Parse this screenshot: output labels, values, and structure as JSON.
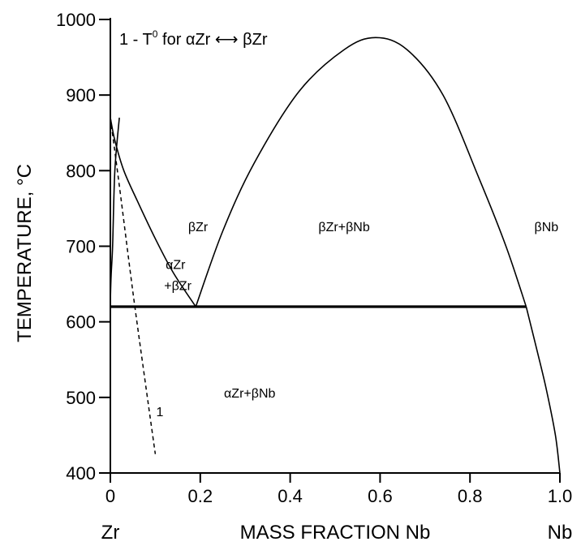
{
  "chart_data": {
    "type": "line",
    "title": "",
    "xlabel": "MASS FRACTION Nb",
    "ylabel": "TEMPERATURE, °C",
    "xlim": [
      0,
      1
    ],
    "ylim": [
      400,
      1000
    ],
    "x_ticks": [
      "0",
      "0.2",
      "0.4",
      "0.6",
      "0.8",
      "1.0"
    ],
    "y_ticks": [
      "400",
      "500",
      "600",
      "700",
      "800",
      "900",
      "1000"
    ],
    "x_end_labels": {
      "left": "Zr",
      "right": "Nb"
    },
    "legend": {
      "prefix": "1 - T",
      "superscript": "0",
      "text": " for αZr",
      "arrow": "⟷",
      "suffix": "βZr",
      "placement": "top-left"
    },
    "series": [
      {
        "name": "",
        "style": "solid",
        "x": [
          0.0,
          0.0,
          0.005,
          0.01,
          0.02
        ],
        "y": [
          400,
          620,
          700,
          800,
          870
        ]
      },
      {
        "name": "",
        "style": "solid",
        "x": [
          0.0,
          0.01,
          0.03,
          0.06,
          0.1,
          0.14,
          0.19
        ],
        "y": [
          870,
          840,
          800,
          760,
          710,
          665,
          620
        ]
      },
      {
        "name": "",
        "style": "solid",
        "x": [
          0.19,
          0.25,
          0.32,
          0.42,
          0.52,
          0.59,
          0.66,
          0.74,
          0.82,
          0.88,
          0.925
        ],
        "y": [
          620,
          720,
          810,
          905,
          960,
          976,
          960,
          900,
          790,
          700,
          620
        ]
      },
      {
        "name": "",
        "style": "solid",
        "x": [
          0.925,
          0.95,
          0.97,
          0.99,
          1.0
        ],
        "y": [
          620,
          560,
          510,
          450,
          400
        ]
      },
      {
        "name": "",
        "style": "thick",
        "x": [
          0.0,
          0.925
        ],
        "y": [
          620,
          620
        ]
      },
      {
        "name": "1",
        "style": "dashed",
        "x": [
          0.0,
          0.02,
          0.05,
          0.08,
          0.1
        ],
        "y": [
          870,
          780,
          640,
          510,
          425
        ]
      }
    ],
    "annotations": [
      {
        "text": "βZr",
        "x": 0.195,
        "y": 720
      },
      {
        "text": "βZr+βNb",
        "x": 0.52,
        "y": 720
      },
      {
        "text": "βNb",
        "x": 0.97,
        "y": 720
      },
      {
        "text": "αZr",
        "x": 0.145,
        "y": 670
      },
      {
        "text": "+βZr",
        "x": 0.15,
        "y": 642
      },
      {
        "text": "αZr+βNb",
        "x": 0.31,
        "y": 500
      },
      {
        "text": "1",
        "x": 0.11,
        "y": 475
      }
    ],
    "grid": false
  }
}
